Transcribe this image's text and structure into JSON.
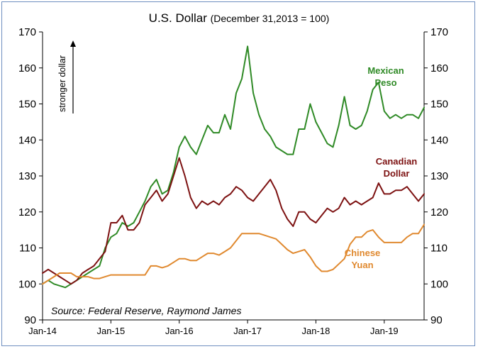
{
  "chart_data": {
    "type": "line",
    "title": "U.S. Dollar",
    "subtitle": "(December 31,2013 = 100)",
    "xlabel": "",
    "ylabel": "",
    "ylim": [
      90,
      170
    ],
    "yticks": [
      "90",
      "100",
      "110",
      "120",
      "130",
      "140",
      "150",
      "160",
      "170"
    ],
    "xlim": [
      "2014-01",
      "2019-08"
    ],
    "xticks": [
      {
        "date": "2014-01",
        "label": "Jan-14"
      },
      {
        "date": "2015-01",
        "label": "Jan-15"
      },
      {
        "date": "2016-01",
        "label": "Jan-16"
      },
      {
        "date": "2017-01",
        "label": "Jan-17"
      },
      {
        "date": "2018-01",
        "label": "Jan-18"
      },
      {
        "date": "2019-01",
        "label": "Jan-19"
      }
    ],
    "grid": false,
    "secondary_y_axis": true,
    "annotation_vertical": "stronger dollar",
    "source": "Source: Federal Reserve, Raymond James",
    "colors": {
      "frame": "#6f8fc0",
      "axis": "#000000"
    },
    "series": [
      {
        "name": "Mexican Peso",
        "label_lines": [
          "Mexican",
          "Peso"
        ],
        "color": "#2f8a26",
        "points": [
          [
            "2014-01",
            100
          ],
          [
            "2014-02",
            101
          ],
          [
            "2014-03",
            100
          ],
          [
            "2014-04",
            99.5
          ],
          [
            "2014-05",
            99
          ],
          [
            "2014-06",
            100
          ],
          [
            "2014-07",
            101
          ],
          [
            "2014-08",
            102
          ],
          [
            "2014-09",
            103
          ],
          [
            "2014-10",
            104
          ],
          [
            "2014-11",
            105
          ],
          [
            "2014-12",
            110
          ],
          [
            "2015-01",
            113
          ],
          [
            "2015-02",
            114
          ],
          [
            "2015-03",
            117
          ],
          [
            "2015-04",
            116
          ],
          [
            "2015-05",
            117
          ],
          [
            "2015-06",
            120
          ],
          [
            "2015-07",
            123
          ],
          [
            "2015-08",
            127
          ],
          [
            "2015-09",
            129
          ],
          [
            "2015-10",
            125
          ],
          [
            "2015-11",
            126
          ],
          [
            "2015-12",
            131
          ],
          [
            "2016-01",
            138
          ],
          [
            "2016-02",
            141
          ],
          [
            "2016-03",
            138
          ],
          [
            "2016-04",
            136
          ],
          [
            "2016-05",
            140
          ],
          [
            "2016-06",
            144
          ],
          [
            "2016-07",
            142
          ],
          [
            "2016-08",
            142
          ],
          [
            "2016-09",
            147
          ],
          [
            "2016-10",
            143
          ],
          [
            "2016-11",
            153
          ],
          [
            "2016-12",
            157
          ],
          [
            "2017-01",
            166
          ],
          [
            "2017-02",
            153
          ],
          [
            "2017-03",
            147
          ],
          [
            "2017-04",
            143
          ],
          [
            "2017-05",
            141
          ],
          [
            "2017-06",
            138
          ],
          [
            "2017-07",
            137
          ],
          [
            "2017-08",
            136
          ],
          [
            "2017-09",
            136
          ],
          [
            "2017-10",
            143
          ],
          [
            "2017-11",
            143
          ],
          [
            "2017-12",
            150
          ],
          [
            "2018-01",
            145
          ],
          [
            "2018-02",
            142
          ],
          [
            "2018-03",
            139
          ],
          [
            "2018-04",
            138
          ],
          [
            "2018-05",
            144
          ],
          [
            "2018-06",
            152
          ],
          [
            "2018-07",
            144
          ],
          [
            "2018-08",
            143
          ],
          [
            "2018-09",
            144
          ],
          [
            "2018-10",
            148
          ],
          [
            "2018-11",
            154
          ],
          [
            "2018-12",
            156
          ],
          [
            "2019-01",
            148
          ],
          [
            "2019-02",
            146
          ],
          [
            "2019-03",
            147
          ],
          [
            "2019-04",
            146
          ],
          [
            "2019-05",
            147
          ],
          [
            "2019-06",
            147
          ],
          [
            "2019-07",
            146
          ],
          [
            "2019-08",
            149
          ]
        ]
      },
      {
        "name": "Canadian Dollar",
        "label_lines": [
          "Canadian",
          "Dollar"
        ],
        "color": "#7d1212",
        "points": [
          [
            "2014-01",
            103
          ],
          [
            "2014-02",
            104
          ],
          [
            "2014-03",
            103
          ],
          [
            "2014-04",
            102
          ],
          [
            "2014-05",
            101
          ],
          [
            "2014-06",
            100
          ],
          [
            "2014-07",
            101
          ],
          [
            "2014-08",
            103
          ],
          [
            "2014-09",
            104
          ],
          [
            "2014-10",
            105
          ],
          [
            "2014-11",
            107
          ],
          [
            "2014-12",
            109
          ],
          [
            "2015-01",
            117
          ],
          [
            "2015-02",
            117
          ],
          [
            "2015-03",
            119
          ],
          [
            "2015-04",
            115
          ],
          [
            "2015-05",
            115
          ],
          [
            "2015-06",
            117
          ],
          [
            "2015-07",
            122
          ],
          [
            "2015-08",
            124
          ],
          [
            "2015-09",
            126
          ],
          [
            "2015-10",
            123
          ],
          [
            "2015-11",
            125
          ],
          [
            "2015-12",
            130
          ],
          [
            "2016-01",
            135
          ],
          [
            "2016-02",
            130
          ],
          [
            "2016-03",
            124
          ],
          [
            "2016-04",
            121
          ],
          [
            "2016-05",
            123
          ],
          [
            "2016-06",
            122
          ],
          [
            "2016-07",
            123
          ],
          [
            "2016-08",
            122
          ],
          [
            "2016-09",
            124
          ],
          [
            "2016-10",
            125
          ],
          [
            "2016-11",
            127
          ],
          [
            "2016-12",
            126
          ],
          [
            "2017-01",
            124
          ],
          [
            "2017-02",
            123
          ],
          [
            "2017-03",
            125
          ],
          [
            "2017-04",
            127
          ],
          [
            "2017-05",
            129
          ],
          [
            "2017-06",
            126
          ],
          [
            "2017-07",
            121
          ],
          [
            "2017-08",
            118
          ],
          [
            "2017-09",
            116
          ],
          [
            "2017-10",
            120
          ],
          [
            "2017-11",
            120
          ],
          [
            "2017-12",
            118
          ],
          [
            "2018-01",
            117
          ],
          [
            "2018-02",
            119
          ],
          [
            "2018-03",
            121
          ],
          [
            "2018-04",
            120
          ],
          [
            "2018-05",
            121
          ],
          [
            "2018-06",
            124
          ],
          [
            "2018-07",
            122
          ],
          [
            "2018-08",
            123
          ],
          [
            "2018-09",
            122
          ],
          [
            "2018-10",
            123
          ],
          [
            "2018-11",
            124
          ],
          [
            "2018-12",
            128
          ],
          [
            "2019-01",
            125
          ],
          [
            "2019-02",
            125
          ],
          [
            "2019-03",
            126
          ],
          [
            "2019-04",
            126
          ],
          [
            "2019-05",
            127
          ],
          [
            "2019-06",
            125
          ],
          [
            "2019-07",
            123
          ],
          [
            "2019-08",
            125
          ]
        ]
      },
      {
        "name": "Chinese Yuan",
        "label_lines": [
          "Chinese",
          "Yuan"
        ],
        "color": "#e0892f",
        "points": [
          [
            "2014-01",
            100
          ],
          [
            "2014-02",
            101
          ],
          [
            "2014-03",
            102
          ],
          [
            "2014-04",
            103
          ],
          [
            "2014-05",
            103
          ],
          [
            "2014-06",
            103
          ],
          [
            "2014-07",
            102
          ],
          [
            "2014-08",
            102
          ],
          [
            "2014-09",
            102
          ],
          [
            "2014-10",
            101.5
          ],
          [
            "2014-11",
            101.5
          ],
          [
            "2014-12",
            102
          ],
          [
            "2015-01",
            102.5
          ],
          [
            "2015-02",
            102.5
          ],
          [
            "2015-03",
            102.5
          ],
          [
            "2015-04",
            102.5
          ],
          [
            "2015-05",
            102.5
          ],
          [
            "2015-06",
            102.5
          ],
          [
            "2015-07",
            102.5
          ],
          [
            "2015-08",
            105
          ],
          [
            "2015-09",
            105
          ],
          [
            "2015-10",
            104.5
          ],
          [
            "2015-11",
            105
          ],
          [
            "2015-12",
            106
          ],
          [
            "2016-01",
            107
          ],
          [
            "2016-02",
            107
          ],
          [
            "2016-03",
            106.5
          ],
          [
            "2016-04",
            106.5
          ],
          [
            "2016-05",
            107.5
          ],
          [
            "2016-06",
            108.5
          ],
          [
            "2016-07",
            108.5
          ],
          [
            "2016-08",
            108
          ],
          [
            "2016-09",
            109
          ],
          [
            "2016-10",
            110
          ],
          [
            "2016-11",
            112
          ],
          [
            "2016-12",
            114
          ],
          [
            "2017-01",
            114
          ],
          [
            "2017-02",
            114
          ],
          [
            "2017-03",
            114
          ],
          [
            "2017-04",
            113.5
          ],
          [
            "2017-05",
            113
          ],
          [
            "2017-06",
            112.5
          ],
          [
            "2017-07",
            111
          ],
          [
            "2017-08",
            109.5
          ],
          [
            "2017-09",
            108.5
          ],
          [
            "2017-10",
            109
          ],
          [
            "2017-11",
            109.5
          ],
          [
            "2017-12",
            107.5
          ],
          [
            "2018-01",
            105
          ],
          [
            "2018-02",
            103.5
          ],
          [
            "2018-03",
            103.5
          ],
          [
            "2018-04",
            104
          ],
          [
            "2018-05",
            105.5
          ],
          [
            "2018-06",
            107
          ],
          [
            "2018-07",
            111
          ],
          [
            "2018-08",
            113
          ],
          [
            "2018-09",
            113
          ],
          [
            "2018-10",
            114.5
          ],
          [
            "2018-11",
            115
          ],
          [
            "2018-12",
            113
          ],
          [
            "2019-01",
            111.5
          ],
          [
            "2019-02",
            111.5
          ],
          [
            "2019-03",
            111.5
          ],
          [
            "2019-04",
            111.5
          ],
          [
            "2019-05",
            113
          ],
          [
            "2019-06",
            114
          ],
          [
            "2019-07",
            114
          ],
          [
            "2019-08",
            116.5
          ]
        ]
      }
    ]
  }
}
